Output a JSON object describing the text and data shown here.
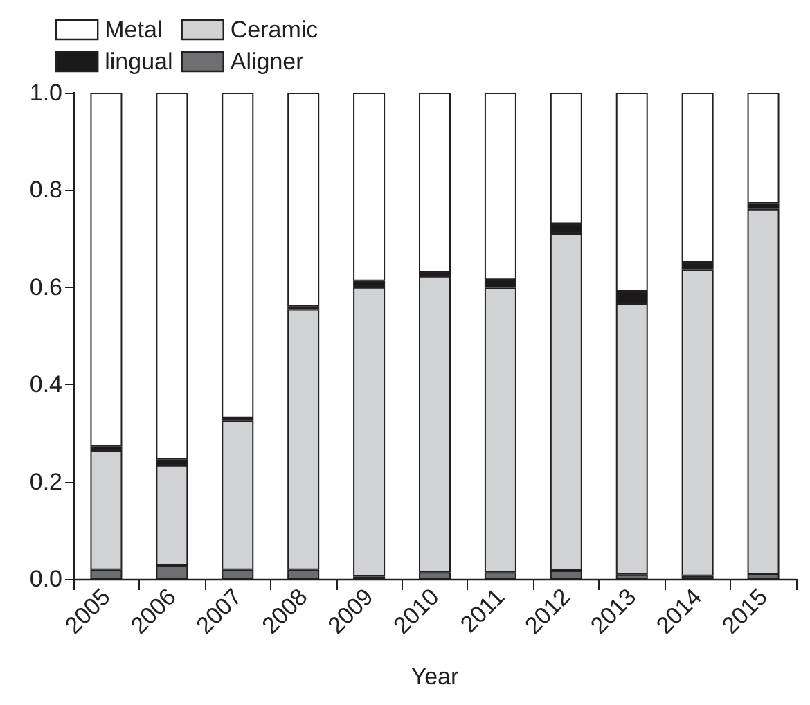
{
  "chart_data": {
    "type": "bar",
    "stacked": true,
    "xlabel": "Year",
    "categories": [
      "2005",
      "2006",
      "2007",
      "2008",
      "2009",
      "2010",
      "2011",
      "2012",
      "2013",
      "2014",
      "2015"
    ],
    "series": [
      {
        "name": "Aligner",
        "color": "#6d6e70",
        "values": [
          0.019,
          0.027,
          0.019,
          0.019,
          0.005,
          0.014,
          0.014,
          0.017,
          0.009,
          0.006,
          0.01
        ]
      },
      {
        "name": "Ceramic",
        "color": "#d1d2d4",
        "values": [
          0.246,
          0.207,
          0.306,
          0.536,
          0.595,
          0.609,
          0.585,
          0.694,
          0.558,
          0.63,
          0.751
        ]
      },
      {
        "name": "lingual",
        "color": "#1a1a1a",
        "values": [
          0.008,
          0.012,
          0.006,
          0.006,
          0.013,
          0.008,
          0.016,
          0.019,
          0.024,
          0.015,
          0.012
        ]
      },
      {
        "name": "Metal",
        "color": "#ffffff",
        "values": [
          0.727,
          0.754,
          0.669,
          0.439,
          0.387,
          0.369,
          0.385,
          0.27,
          0.409,
          0.349,
          0.227
        ]
      }
    ],
    "ylim": [
      0,
      1
    ],
    "yticks": [
      {
        "value": 0,
        "label": "0.0"
      },
      {
        "value": 0.2,
        "label": "0.2"
      },
      {
        "value": 0.4,
        "label": "0.4"
      },
      {
        "value": 0.6,
        "label": "0.6"
      },
      {
        "value": 0.8,
        "label": "0.8"
      },
      {
        "value": 1,
        "label": "1.0"
      }
    ],
    "grid": false,
    "legend": "top left"
  }
}
